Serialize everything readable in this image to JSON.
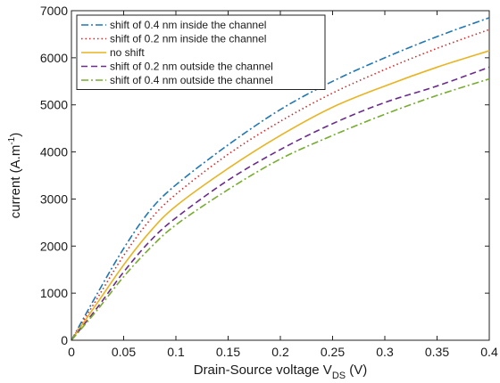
{
  "chart_data": {
    "type": "line",
    "xlabel": "Drain-Source voltage V",
    "xlabel_subscript": "DS",
    "xlabel_unit": " (V)",
    "ylabel": "current (A.m",
    "ylabel_superscript": "-1",
    "ylabel_close": ")",
    "xlim": [
      0,
      0.4
    ],
    "ylim": [
      0,
      7000
    ],
    "xticks": [
      0,
      0.05,
      0.1,
      0.15,
      0.2,
      0.25,
      0.3,
      0.35,
      0.4
    ],
    "xtick_labels": [
      "0",
      "0.05",
      "0.1",
      "0.15",
      "0.2",
      "0.25",
      "0.3",
      "0.35",
      "0.4"
    ],
    "yticks": [
      0,
      1000,
      2000,
      3000,
      4000,
      5000,
      6000,
      7000
    ],
    "ytick_labels": [
      "0",
      "1000",
      "2000",
      "3000",
      "4000",
      "5000",
      "6000",
      "7000"
    ],
    "grid": false,
    "legend_position": "top-left",
    "x": [
      0,
      0.025,
      0.05,
      0.075,
      0.1,
      0.15,
      0.2,
      0.25,
      0.3,
      0.35,
      0.4
    ],
    "series": [
      {
        "name": "shift of 0.4 nm inside the channel",
        "color": "#1f77b4",
        "dash": "dashdot",
        "values": [
          0,
          1000,
          1950,
          2750,
          3300,
          4150,
          4900,
          5500,
          6000,
          6450,
          6850
        ]
      },
      {
        "name": "shift of 0.2 nm inside the channel",
        "color": "#d62728",
        "dash": "dotted",
        "values": [
          0,
          900,
          1800,
          2550,
          3100,
          3950,
          4650,
          5250,
          5750,
          6200,
          6600
        ]
      },
      {
        "name": "no shift",
        "color": "#e8b421",
        "dash": "solid",
        "values": [
          0,
          800,
          1600,
          2300,
          2850,
          3650,
          4350,
          4950,
          5400,
          5800,
          6150
        ]
      },
      {
        "name": "shift of 0.2 nm outside the channel",
        "color": "#6a2b8c",
        "dash": "dashed",
        "values": [
          0,
          700,
          1450,
          2100,
          2600,
          3400,
          4050,
          4600,
          5050,
          5400,
          5800
        ]
      },
      {
        "name": "shift of 0.4 nm outside the channel",
        "color": "#77ac30",
        "dash": "dashdot",
        "values": [
          0,
          650,
          1350,
          1950,
          2450,
          3200,
          3850,
          4350,
          4800,
          5200,
          5550
        ]
      }
    ]
  }
}
